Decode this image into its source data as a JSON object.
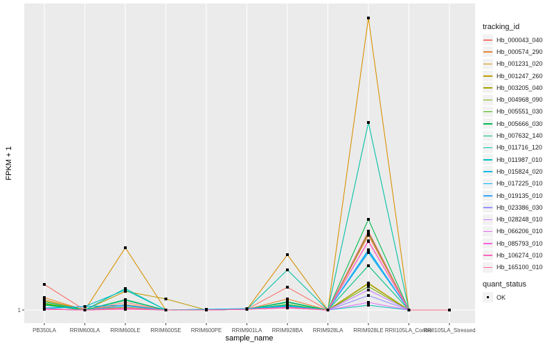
{
  "chart_data": {
    "type": "line",
    "xlabel": "sample_name",
    "ylabel": "FPKM + 1",
    "yticks": [
      "1"
    ],
    "ylim": [
      -0.9,
      45.3
    ],
    "grid": true,
    "legend_position": "right",
    "categories": [
      "PB350LA",
      "RRIM600LA",
      "RRIM600LE",
      "RRIM600SE",
      "RRIM600PE",
      "RRIM901LA",
      "RRIM928BA",
      "RRIM928LA",
      "RRIM928LE",
      "RRII105LA_Control",
      "RRII105LA_Stressed"
    ],
    "legend_title": "tracking_id",
    "shape_legend_title": "quant_status",
    "shape_legend_items": [
      "OK"
    ],
    "series": [
      {
        "name": "Hb_000043_040",
        "color": "#F8766D",
        "values": [
          4.7,
          1,
          2.1,
          1,
          1,
          1.1,
          4.3,
          1,
          12,
          1,
          1
        ]
      },
      {
        "name": "Hb_000574_290",
        "color": "#EA8331",
        "values": [
          2.8,
          1,
          1.8,
          1,
          1,
          1.1,
          2.6,
          1,
          11.8,
          1,
          1
        ]
      },
      {
        "name": "Hb_001231_020",
        "color": "#D89000",
        "values": [
          2.5,
          1,
          10,
          1,
          1,
          1.1,
          9,
          1,
          43.2,
          1,
          1
        ]
      },
      {
        "name": "Hb_001247_260",
        "color": "#C09B00",
        "values": [
          2.3,
          1,
          3.7,
          2.6,
          1,
          1.1,
          2.1,
          1,
          4.9,
          1,
          1
        ]
      },
      {
        "name": "Hb_003205_040",
        "color": "#A3A500",
        "values": [
          2.2,
          1,
          1.3,
          1,
          1,
          1.1,
          1.8,
          1,
          4.8,
          1,
          1
        ]
      },
      {
        "name": "Hb_004968_090",
        "color": "#7CAE00",
        "values": [
          2,
          1,
          1.4,
          1,
          1,
          1.1,
          1.7,
          1,
          4.4,
          1,
          1
        ]
      },
      {
        "name": "Hb_005551_030",
        "color": "#39B600",
        "values": [
          1.9,
          1,
          1.2,
          1,
          1,
          1.1,
          1.8,
          1,
          12.2,
          1,
          1
        ]
      },
      {
        "name": "Hb_005666_030",
        "color": "#00BB4E",
        "values": [
          1.8,
          1,
          2.5,
          1,
          1,
          1.1,
          2.1,
          1,
          14.1,
          1,
          1
        ]
      },
      {
        "name": "Hb_007632_140",
        "color": "#00BF7D",
        "values": [
          1.7,
          1,
          2.4,
          1,
          1,
          1.1,
          2.2,
          1,
          7.4,
          1,
          1
        ]
      },
      {
        "name": "Hb_011716_120",
        "color": "#00C1A3",
        "values": [
          2.2,
          1,
          4.1,
          1,
          1,
          1.1,
          6.8,
          1,
          28.1,
          1,
          1
        ]
      },
      {
        "name": "Hb_011987_010",
        "color": "#00BFC4",
        "values": [
          1.2,
          1.5,
          3.9,
          1,
          1.1,
          1.2,
          1.7,
          1,
          1.7,
          1,
          1
        ]
      },
      {
        "name": "Hb_015824_020",
        "color": "#00BAE0",
        "values": [
          1.2,
          1,
          1.6,
          1,
          1,
          1.1,
          1.6,
          1,
          9.3,
          1,
          1
        ]
      },
      {
        "name": "Hb_017225_010",
        "color": "#00B0F6",
        "values": [
          1.3,
          1.5,
          1.7,
          1,
          1.1,
          1.2,
          1.5,
          1,
          9.7,
          1,
          1
        ]
      },
      {
        "name": "Hb_019135_010",
        "color": "#35A2FF",
        "values": [
          1.1,
          1,
          1.6,
          1,
          1,
          1.1,
          1.4,
          1,
          9.5,
          1,
          1
        ]
      },
      {
        "name": "Hb_023386_030",
        "color": "#9590FF",
        "values": [
          1.1,
          1,
          1.2,
          1,
          1,
          1.1,
          1.4,
          1,
          3.1,
          1,
          1
        ]
      },
      {
        "name": "Hb_028248_010",
        "color": "#C77CFF",
        "values": [
          1.2,
          1,
          1.2,
          1,
          1,
          1.1,
          1.3,
          1,
          3.9,
          1,
          1
        ]
      },
      {
        "name": "Hb_066206_010",
        "color": "#E76BF3",
        "values": [
          1.1,
          1,
          1.2,
          1,
          1,
          1.1,
          1.3,
          1,
          2.1,
          1,
          1
        ]
      },
      {
        "name": "Hb_085793_010",
        "color": "#FA62DB",
        "values": [
          1.2,
          1,
          1.3,
          1,
          1,
          1.1,
          1.4,
          1,
          11,
          1,
          1
        ]
      },
      {
        "name": "Hb_106274_010",
        "color": "#FF62BC",
        "values": [
          1.1,
          1,
          1.1,
          1,
          1,
          1.1,
          1.3,
          1,
          10.9,
          1,
          1
        ]
      },
      {
        "name": "Hb_165100_010",
        "color": "#FF6C91",
        "values": [
          1.1,
          1,
          1.2,
          1,
          1,
          1.1,
          1.4,
          1,
          12.4,
          1,
          1
        ]
      }
    ]
  }
}
